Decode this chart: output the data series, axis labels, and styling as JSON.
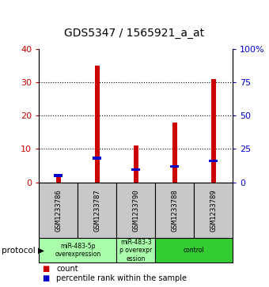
{
  "title": "GDS5347 / 1565921_a_at",
  "samples": [
    "GSM1233786",
    "GSM1233787",
    "GSM1233790",
    "GSM1233788",
    "GSM1233789"
  ],
  "counts": [
    2,
    35,
    11,
    18,
    31
  ],
  "percentile_ranks": [
    5,
    18,
    9.5,
    12,
    16
  ],
  "left_ylim": [
    0,
    40
  ],
  "right_ylim": [
    0,
    100
  ],
  "left_yticks": [
    0,
    10,
    20,
    30,
    40
  ],
  "right_yticks": [
    0,
    25,
    50,
    75,
    100
  ],
  "right_yticklabels": [
    "0",
    "25",
    "50",
    "75",
    "100%"
  ],
  "bar_color_red": "#CC0000",
  "bar_color_blue": "#0000CC",
  "sample_box_color": "#c8c8c8",
  "group_configs": [
    {
      "start": 0,
      "end": 1,
      "label": "miR-483-5p\noverexpression",
      "color": "#aaffaa"
    },
    {
      "start": 2,
      "end": 2,
      "label": "miR-483-3\np overexpr\nession",
      "color": "#aaffaa"
    },
    {
      "start": 3,
      "end": 4,
      "label": "control",
      "color": "#33cc33"
    }
  ],
  "protocol_label": "protocol",
  "legend_count_label": "count",
  "legend_pct_label": "percentile rank within the sample",
  "bg_color": "#ffffff"
}
